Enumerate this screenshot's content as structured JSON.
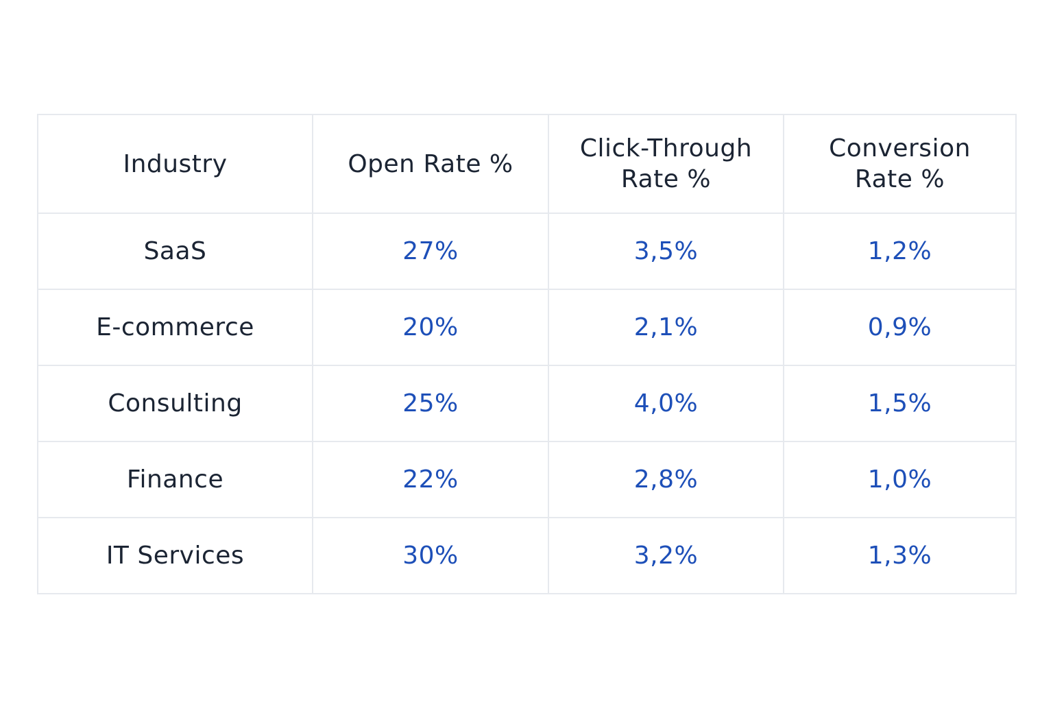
{
  "chart_data": {
    "type": "table",
    "columns": [
      "Industry",
      "Open Rate %",
      "Click-Through Rate %",
      "Conversion Rate %"
    ],
    "rows": [
      [
        "SaaS",
        "27%",
        "3,5%",
        "1,2%"
      ],
      [
        "E-commerce",
        "20%",
        "2,1%",
        "0,9%"
      ],
      [
        "Consulting",
        "25%",
        "4,0%",
        "1,5%"
      ],
      [
        "Finance",
        "22%",
        "2,8%",
        "1,0%"
      ],
      [
        "IT Services",
        "30%",
        "3,2%",
        "1,3%"
      ]
    ]
  },
  "colors": {
    "header_text": "#1b2433",
    "label_text": "#1b2433",
    "value_text": "#1d4fb8",
    "border": "#e6e9ee",
    "background": "#ffffff"
  }
}
